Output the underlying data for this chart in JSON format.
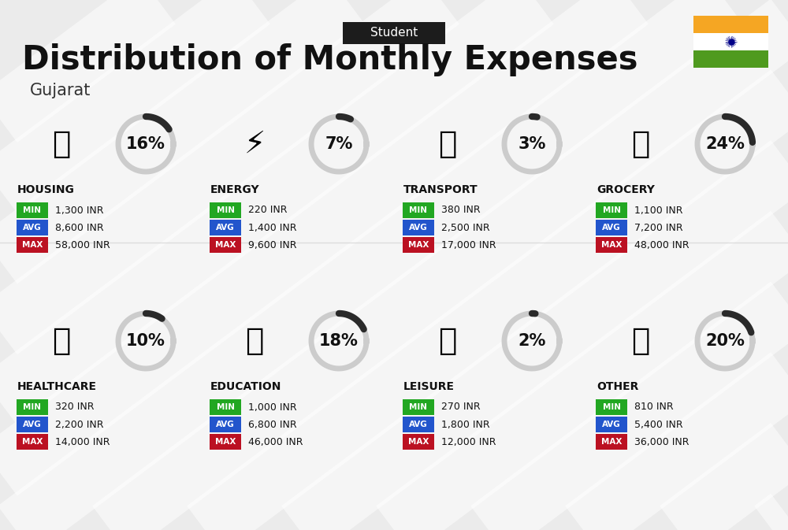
{
  "title": "Distribution of Monthly Expenses",
  "subtitle": "Student",
  "location": "Gujarat",
  "bg_color": "#ebebeb",
  "categories": [
    {
      "name": "HOUSING",
      "percent": 16,
      "min_val": "1,300 INR",
      "avg_val": "8,600 INR",
      "max_val": "58,000 INR",
      "row": 0,
      "col": 0
    },
    {
      "name": "ENERGY",
      "percent": 7,
      "min_val": "220 INR",
      "avg_val": "1,400 INR",
      "max_val": "9,600 INR",
      "row": 0,
      "col": 1
    },
    {
      "name": "TRANSPORT",
      "percent": 3,
      "min_val": "380 INR",
      "avg_val": "2,500 INR",
      "max_val": "17,000 INR",
      "row": 0,
      "col": 2
    },
    {
      "name": "GROCERY",
      "percent": 24,
      "min_val": "1,100 INR",
      "avg_val": "7,200 INR",
      "max_val": "48,000 INR",
      "row": 0,
      "col": 3
    },
    {
      "name": "HEALTHCARE",
      "percent": 10,
      "min_val": "320 INR",
      "avg_val": "2,200 INR",
      "max_val": "14,000 INR",
      "row": 1,
      "col": 0
    },
    {
      "name": "EDUCATION",
      "percent": 18,
      "min_val": "1,000 INR",
      "avg_val": "6,800 INR",
      "max_val": "46,000 INR",
      "row": 1,
      "col": 1
    },
    {
      "name": "LEISURE",
      "percent": 2,
      "min_val": "270 INR",
      "avg_val": "1,800 INR",
      "max_val": "12,000 INR",
      "row": 1,
      "col": 2
    },
    {
      "name": "OTHER",
      "percent": 20,
      "min_val": "810 INR",
      "avg_val": "5,400 INR",
      "max_val": "36,000 INR",
      "row": 1,
      "col": 3
    }
  ],
  "min_color": "#22a722",
  "avg_color": "#2255cc",
  "max_color": "#bb1122",
  "india_flag_orange": "#f5a623",
  "india_flag_green": "#4f9a1f",
  "card_bg": "#e8e8e8"
}
